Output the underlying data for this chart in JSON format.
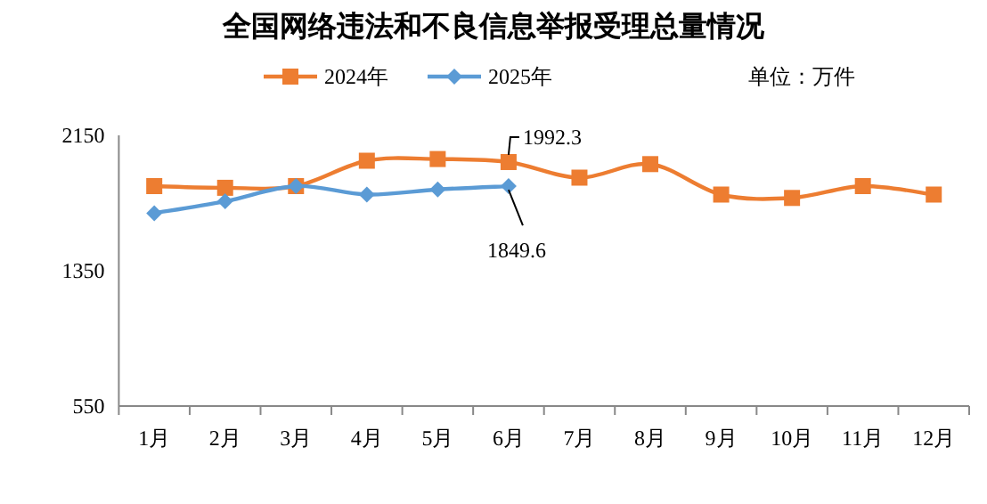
{
  "chart_data": {
    "type": "line",
    "title": "全国网络违法和不良信息举报受理总量情况",
    "categories": [
      "1月",
      "2月",
      "3月",
      "4月",
      "5月",
      "6月",
      "7月",
      "8月",
      "9月",
      "10月",
      "11月",
      "12月"
    ],
    "series": [
      {
        "name": "2024年",
        "color": "#ed7d31",
        "marker": "square",
        "values": [
          1850,
          1840,
          1850,
          2000,
          2010,
          1992.3,
          1900,
          1980,
          1800,
          1780,
          1850,
          1800
        ]
      },
      {
        "name": "2025年",
        "color": "#5b9bd5",
        "marker": "diamond",
        "values": [
          1690,
          1760,
          1850,
          1800,
          1830,
          1849.6,
          null,
          null,
          null,
          null,
          null,
          null
        ]
      }
    ],
    "ylim": [
      550,
      2150
    ],
    "yticks": [
      550,
      1350,
      2150
    ],
    "grid": false,
    "legend": "top",
    "annotations": [
      {
        "text": "1992.3",
        "x": "6月",
        "y": 1992.3
      },
      {
        "text": "1849.6",
        "x": "6月",
        "y": 1849.6
      },
      "单位：万件"
    ]
  }
}
